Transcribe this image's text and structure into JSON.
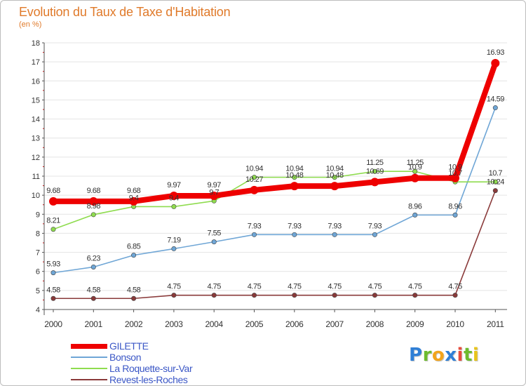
{
  "title": "Evolution du Taux de Taxe d'Habitation",
  "subtitle": "(en %)",
  "brand": {
    "letters": [
      "P",
      "r",
      "o",
      "x",
      "i",
      "t",
      "i"
    ],
    "colors": [
      "#2f7fd6",
      "#6dbb2e",
      "#f2a41c",
      "#2f7fd6",
      "#e74c3c",
      "#6dbb2e",
      "#e8c41a"
    ]
  },
  "chart_data": {
    "type": "line",
    "title": "Evolution du Taux de Taxe d'Habitation",
    "subtitle": "(en %)",
    "xlabel": "",
    "ylabel": "",
    "ylim": [
      4,
      18
    ],
    "yticks": [
      "4",
      "5",
      "6",
      "7",
      "8",
      "9",
      "10",
      "11",
      "12",
      "13",
      "14",
      "15",
      "16",
      "17",
      "18"
    ],
    "categories": [
      "2000",
      "2001",
      "2002",
      "2003",
      "2004",
      "2005",
      "2006",
      "2007",
      "2008",
      "2009",
      "2010",
      "2011"
    ],
    "legend_position": "bottom-left",
    "series": [
      {
        "name": "GILETTE",
        "color": "#ee0000",
        "values": [
          9.68,
          9.68,
          9.68,
          9.97,
          9.97,
          10.27,
          10.48,
          10.48,
          10.69,
          10.9,
          10.9,
          16.93
        ],
        "labels": [
          "9.68",
          "9.68",
          "9.68",
          "9.97",
          "9.97",
          "10.27",
          "10.48",
          "10.48",
          "10.69",
          "10.9",
          "10.9",
          "16.93"
        ]
      },
      {
        "name": "Bonson",
        "color": "#6fa6d6",
        "values": [
          5.93,
          6.23,
          6.85,
          7.19,
          7.55,
          7.93,
          7.93,
          7.93,
          7.93,
          8.96,
          8.96,
          14.59
        ],
        "labels": [
          "5.93",
          "6.23",
          "6.85",
          "7.19",
          "7.55",
          "7.93",
          "7.93",
          "7.93",
          "7.93",
          "8.96",
          "8.96",
          "14.59"
        ]
      },
      {
        "name": "La Roquette-sur-Var",
        "color": "#8fdc4f",
        "values": [
          8.21,
          8.98,
          9.4,
          9.4,
          9.7,
          10.94,
          10.94,
          10.94,
          11.25,
          11.25,
          10.7,
          10.7
        ],
        "labels": [
          "8.21",
          "8.98",
          "9.4",
          "9.4",
          "9.7",
          "10.94",
          "10.94",
          "10.94",
          "11.25",
          "11.25",
          "10.7",
          "10.7"
        ]
      },
      {
        "name": "Revest-les-Roches",
        "color": "#8a3a3a",
        "values": [
          4.58,
          4.58,
          4.58,
          4.75,
          4.75,
          4.75,
          4.75,
          4.75,
          4.75,
          4.75,
          4.75,
          10.24
        ],
        "labels": [
          "4.58",
          "4.58",
          "4.58",
          "4.75",
          "4.75",
          "4.75",
          "4.75",
          "4.75",
          "4.75",
          "4.75",
          "4.75",
          "10.24"
        ]
      }
    ]
  }
}
